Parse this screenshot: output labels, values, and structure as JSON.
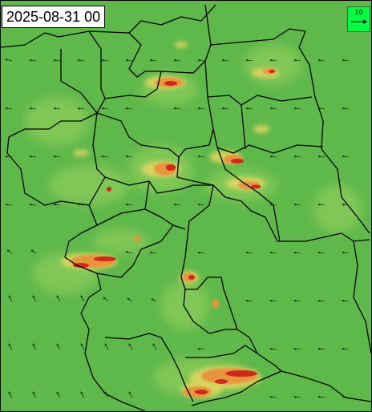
{
  "map": {
    "timestamp": "2025-08-31 00",
    "legend": {
      "reference_value": "10",
      "background_color": "#00ff44"
    },
    "colors": {
      "base_green": "#5fb84a",
      "light_green": "#8ccc5c",
      "yellow": "#e6d760",
      "orange": "#e8943c",
      "red": "#cc2a1a",
      "border": "#000000",
      "wind_arrow": "#1a3a1a"
    },
    "icons": {
      "legend_arrow": "wind-vector-arrow-icon"
    }
  }
}
